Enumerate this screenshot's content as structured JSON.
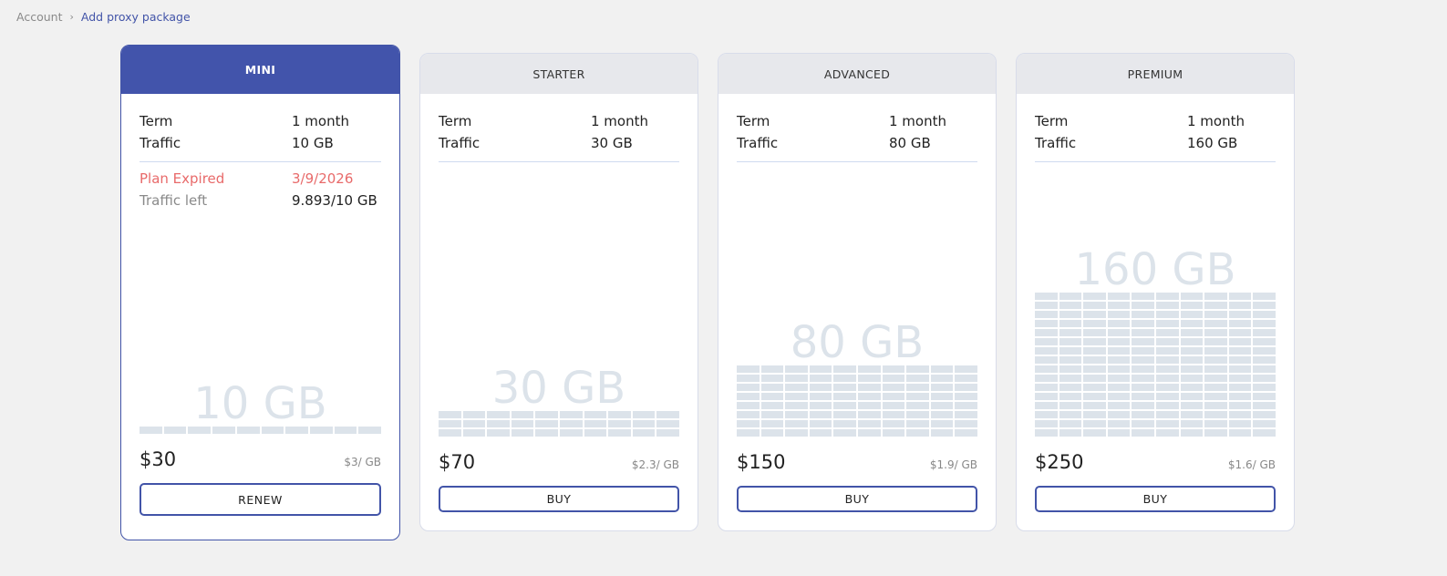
{
  "breadcrumb": {
    "items": [
      "Account",
      "Add proxy package"
    ]
  },
  "colors": {
    "accent": "#4254ab",
    "expired": "#e86a6a",
    "block": "#dce3ea"
  },
  "plans": [
    {
      "name": "MINI",
      "active": true,
      "term_label": "Term",
      "term": "1 month",
      "traffic_label": "Traffic",
      "traffic": "10 GB",
      "traffic_gb": 10,
      "expired_label": "Plan Expired",
      "expired_date": "3/9/2026",
      "left_label": "Traffic left",
      "left_value": "9.893/10 GB",
      "big_label": "10 GB",
      "price": "$30",
      "per_gb": "$3/ GB",
      "button": "RENEW"
    },
    {
      "name": "STARTER",
      "active": false,
      "term_label": "Term",
      "term": "1 month",
      "traffic_label": "Traffic",
      "traffic": "30 GB",
      "traffic_gb": 30,
      "big_label": "30 GB",
      "price": "$70",
      "per_gb": "$2.3/ GB",
      "button": "BUY"
    },
    {
      "name": "ADVANCED",
      "active": false,
      "term_label": "Term",
      "term": "1 month",
      "traffic_label": "Traffic",
      "traffic": "80 GB",
      "traffic_gb": 80,
      "big_label": "80 GB",
      "price": "$150",
      "per_gb": "$1.9/ GB",
      "button": "BUY"
    },
    {
      "name": "PREMIUM",
      "active": false,
      "term_label": "Term",
      "term": "1 month",
      "traffic_label": "Traffic",
      "traffic": "160 GB",
      "traffic_gb": 160,
      "big_label": "160 GB",
      "price": "$250",
      "per_gb": "$1.6/ GB",
      "button": "BUY"
    }
  ]
}
